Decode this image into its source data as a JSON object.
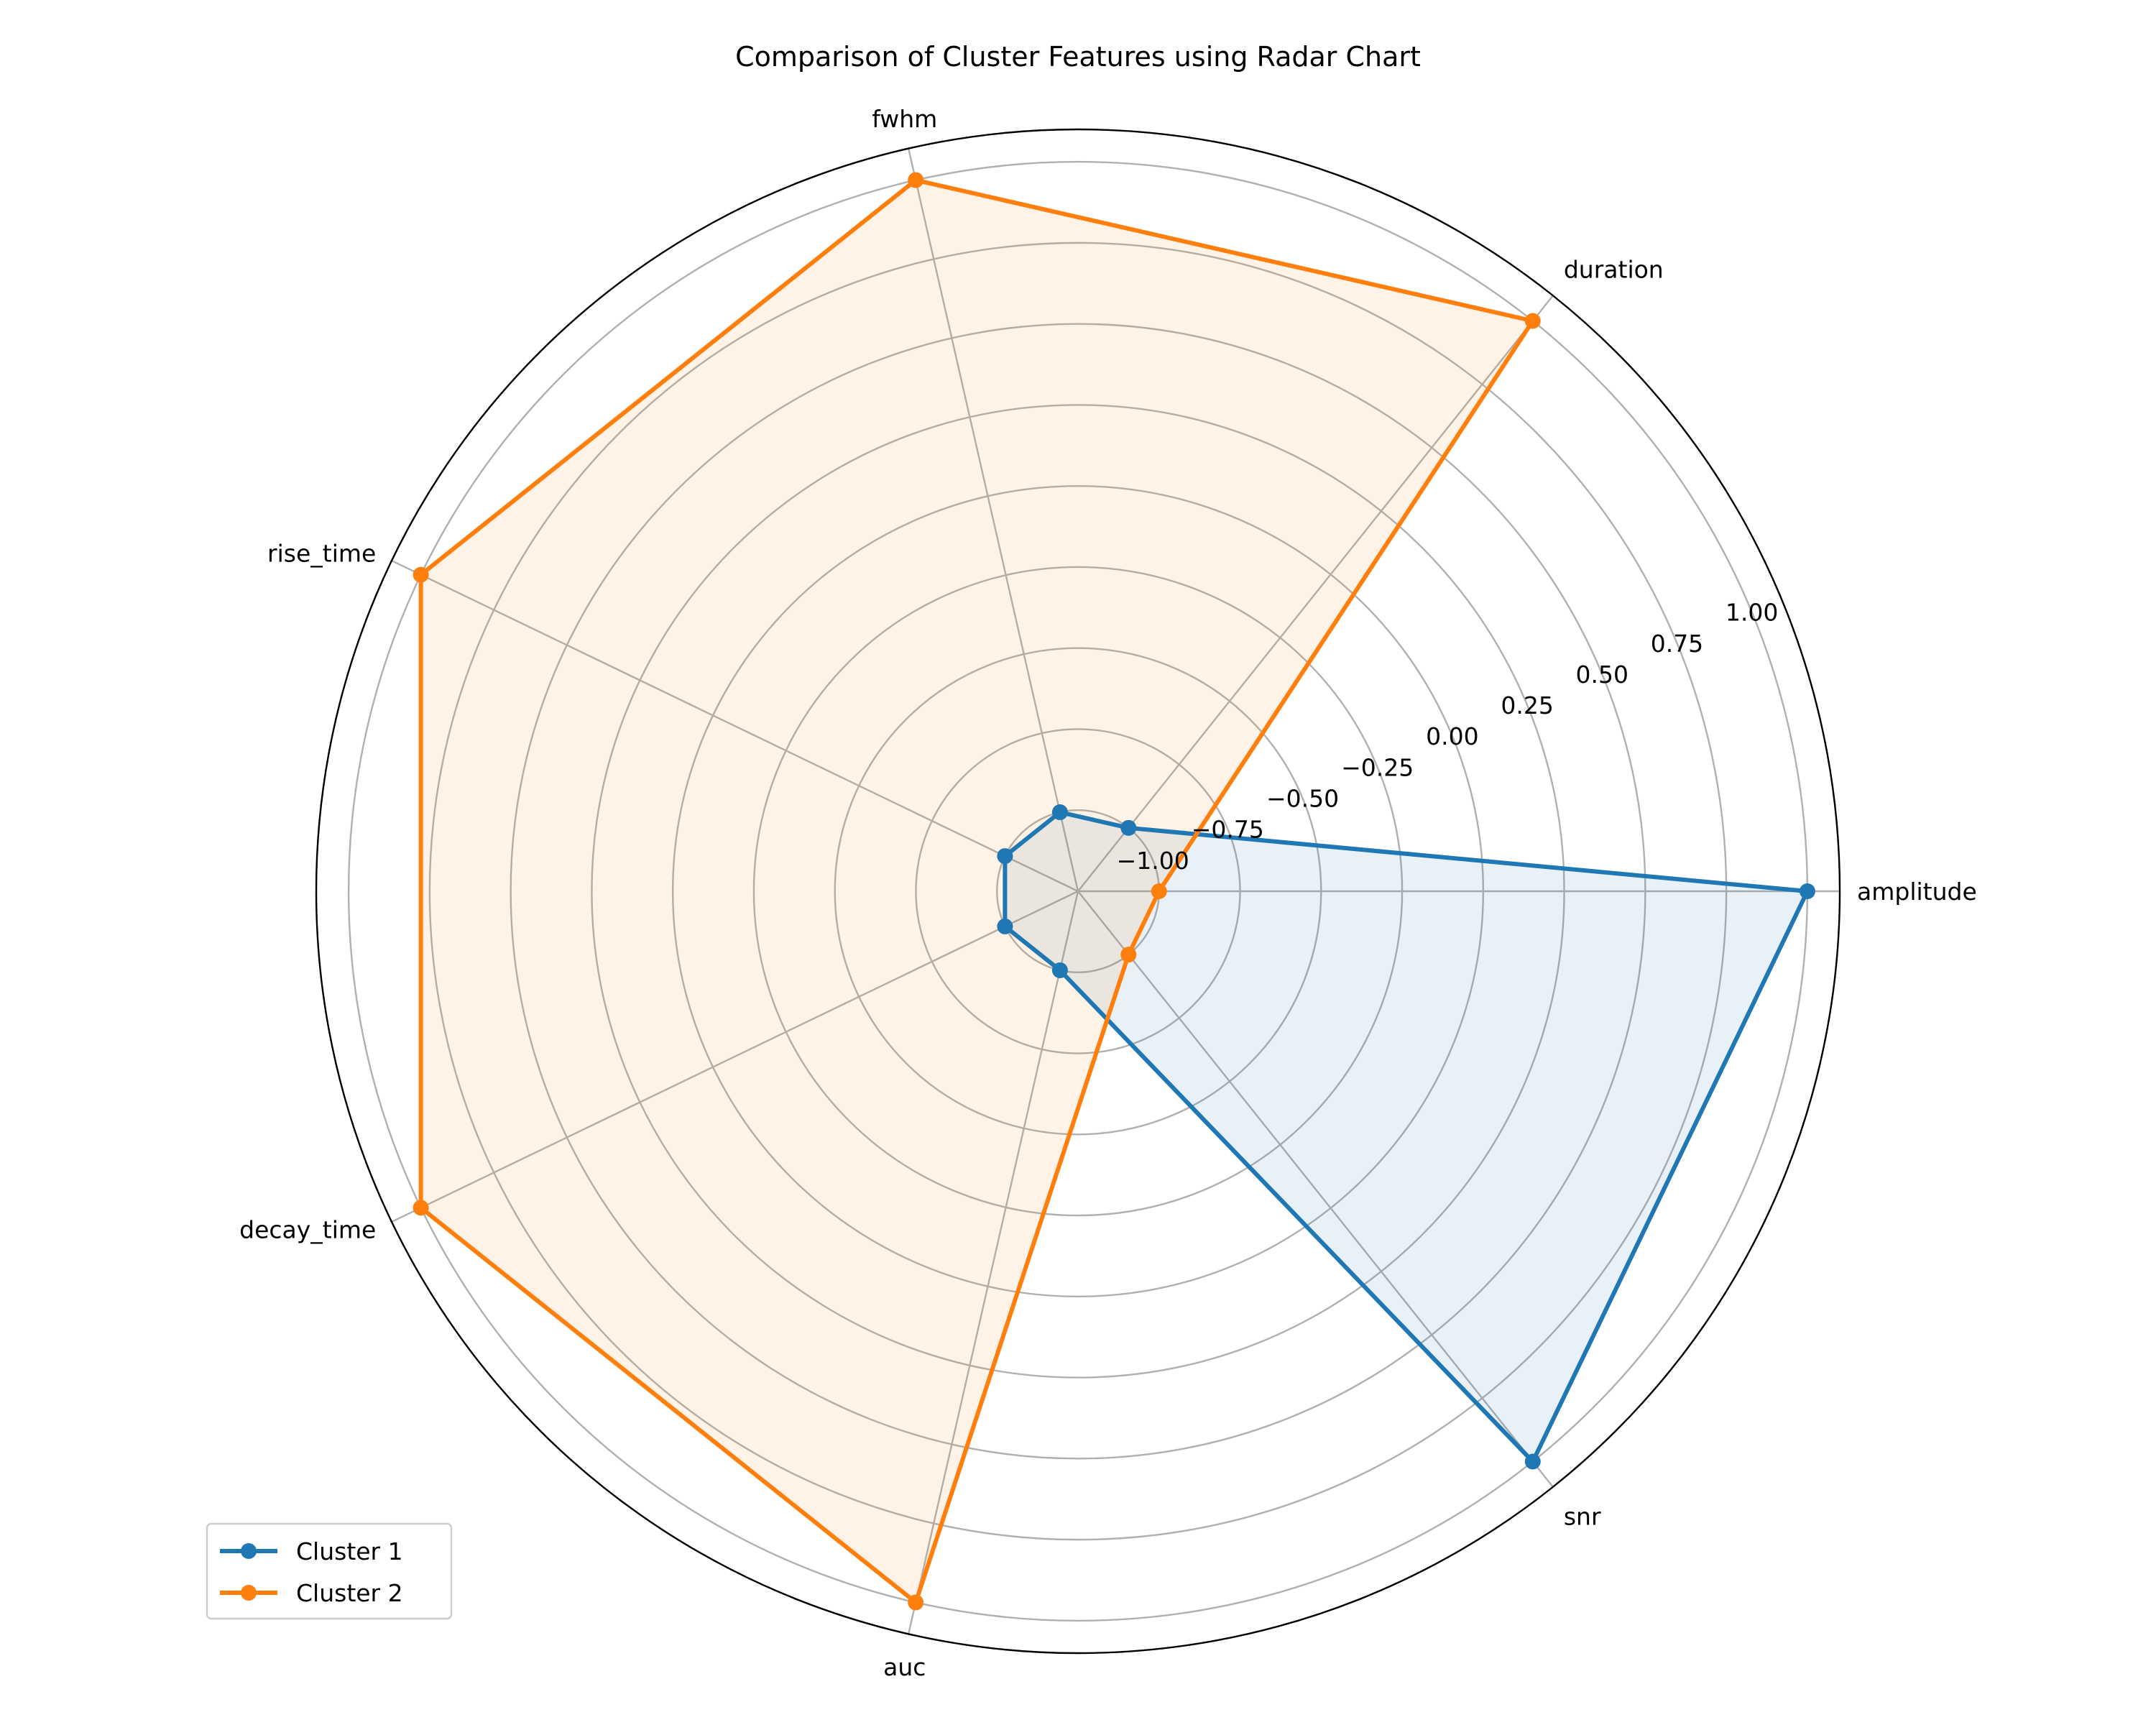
{
  "chart_data": {
    "type": "radar",
    "title": "Comparison of Cluster Features using Radar Chart",
    "axes": [
      "amplitude",
      "duration",
      "fwhm",
      "rise_time",
      "decay_time",
      "auc",
      "snr"
    ],
    "r_range": [
      -1.25,
      1.1
    ],
    "r_ticks": [
      -1.0,
      -0.75,
      -0.5,
      -0.25,
      0.0,
      0.25,
      0.5,
      0.75,
      1.0
    ],
    "r_tick_labels": [
      "−1.00",
      "−0.75",
      "−0.50",
      "−0.25",
      "0.00",
      "0.25",
      "0.50",
      "0.75",
      "1.00"
    ],
    "grid": true,
    "legend_position": "lower-left",
    "series": [
      {
        "name": "Cluster 1",
        "color": "#1f77b4",
        "values": [
          1.0,
          -1.0,
          -1.0,
          -1.0,
          -1.0,
          -1.0,
          1.0
        ]
      },
      {
        "name": "Cluster 2",
        "color": "#ff7f0e",
        "values": [
          -1.0,
          1.0,
          1.0,
          1.0,
          1.0,
          1.0,
          -1.0
        ]
      }
    ]
  }
}
